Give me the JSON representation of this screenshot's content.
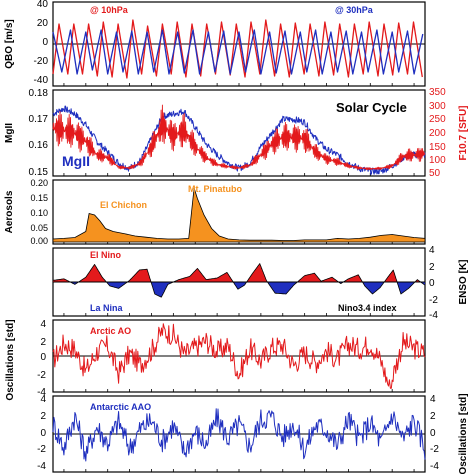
{
  "chart_data": [
    {
      "type": "line",
      "ylabel": "QBO  [m/s]",
      "ylim": [
        -40,
        40
      ],
      "yticks": [
        "40",
        "20",
        "0",
        "-20",
        "-40"
      ],
      "grid": false,
      "series": [
        {
          "name": "@ 10hPa",
          "color": "#e31a1c",
          "x": [
            1979,
            1979.55,
            1980.35,
            1980.9,
            1981.7,
            1982.25,
            1983.05,
            1983.6,
            1984.4,
            1984.95,
            1985.75,
            1986.3,
            1987.1,
            1987.65,
            1988.45,
            1989.0,
            1989.8,
            1990.35,
            1991.15,
            1991.7,
            1992.5,
            1993.05,
            1993.85,
            1994.4,
            1995.2,
            1995.75,
            1996.55,
            1997.1,
            1997.9,
            1998.45,
            1999.25,
            1999.8,
            2000.6,
            2001.15,
            2001.95,
            2002.5,
            2003.3,
            2003.85,
            2004.65,
            2005.2,
            2006.0,
            2006.55,
            2007.35,
            2007.9,
            2008.7,
            2009.25,
            2010.05,
            2010.6,
            2011.4,
            2011.95,
            2012.75
          ],
          "y": [
            -30,
            20,
            -30,
            20,
            -30,
            20,
            -32,
            22,
            -33,
            20,
            -34,
            24,
            -30,
            18,
            -32,
            20,
            -30,
            22,
            -33,
            20,
            -32,
            20,
            -30,
            22,
            -31,
            20,
            -33,
            22,
            -30,
            24,
            -32,
            20,
            -33,
            21,
            -30,
            20,
            -32,
            22,
            -31,
            20,
            -33,
            20,
            -30,
            22,
            -32,
            20,
            -31,
            21,
            -30,
            22,
            -33
          ]
        },
        {
          "name": "@ 30hPa",
          "color": "#1f2fbf",
          "x": [
            1979,
            1979.8,
            1980.6,
            1981.2,
            1982.0,
            1982.6,
            1983.4,
            1984.0,
            1984.8,
            1985.4,
            1986.2,
            1986.8,
            1987.6,
            1988.2,
            1989.0,
            1989.6,
            1990.4,
            1991.0,
            1991.8,
            1992.4,
            1993.2,
            1993.8,
            1994.6,
            1995.2,
            1996.0,
            1996.6,
            1997.4,
            1998.0,
            1998.8,
            1999.4,
            2000.2,
            2000.8,
            2001.6,
            2002.2,
            2003.0,
            2003.6,
            2004.4,
            2005.0,
            2005.8,
            2006.4,
            2007.2,
            2007.8,
            2008.6,
            2009.2,
            2010.0,
            2010.6,
            2011.4,
            2012.0,
            2012.8
          ],
          "y": [
            12,
            -28,
            14,
            -30,
            12,
            -26,
            14,
            -30,
            12,
            -28,
            13,
            -30,
            12,
            -28,
            14,
            -30,
            12,
            -29,
            14,
            -30,
            12,
            -28,
            13,
            -30,
            12,
            -28,
            14,
            -30,
            12,
            -29,
            13,
            -30,
            12,
            -28,
            14,
            -30,
            12,
            -28,
            13,
            -30,
            12,
            -28,
            14,
            -30,
            12,
            -28,
            13,
            -30,
            10
          ]
        }
      ]
    },
    {
      "type": "line",
      "title": "Solar Cycle",
      "ylabel": "MgII",
      "ylabel_right": "F10.7 [SFU]",
      "ylim": [
        0.15,
        0.18
      ],
      "ylim_right": [
        50,
        350
      ],
      "yticks": [
        "0.18",
        "0.17",
        "0.16",
        "0.15"
      ],
      "yticks_right": [
        "350",
        "300",
        "250",
        "200",
        "150",
        "100",
        "50"
      ],
      "grid": false,
      "series": [
        {
          "name": "MgII",
          "color": "#1f2fbf",
          "x": [
            1979,
            1980,
            1981,
            1982,
            1983,
            1984,
            1985,
            1986,
            1987,
            1988,
            1989,
            1990,
            1991,
            1992,
            1993,
            1994,
            1995,
            1996,
            1997,
            1998,
            1999,
            2000,
            2001,
            2002,
            2003,
            2004,
            2005,
            2006,
            2007,
            2008,
            2009,
            2010,
            2011,
            2012,
            2013
          ],
          "y": [
            0.172,
            0.174,
            0.172,
            0.168,
            0.162,
            0.158,
            0.154,
            0.152,
            0.155,
            0.163,
            0.171,
            0.172,
            0.173,
            0.167,
            0.161,
            0.157,
            0.154,
            0.152,
            0.154,
            0.16,
            0.165,
            0.17,
            0.17,
            0.169,
            0.163,
            0.159,
            0.157,
            0.154,
            0.152,
            0.151,
            0.151,
            0.153,
            0.156,
            0.157,
            0.157
          ]
        },
        {
          "name": "F10.7",
          "color": "#e31a1c",
          "x": [
            1979,
            1980,
            1981,
            1982,
            1983,
            1984,
            1985,
            1986,
            1987,
            1988,
            1989,
            1990,
            1991,
            1992,
            1993,
            1994,
            1995,
            1996,
            1997,
            1998,
            1999,
            2000,
            2001,
            2002,
            2003,
            2004,
            2005,
            2006,
            2007,
            2008,
            2009,
            2010,
            2011,
            2012,
            2013
          ],
          "y": [
            220,
            210,
            200,
            170,
            120,
            110,
            75,
            72,
            90,
            150,
            230,
            190,
            210,
            150,
            110,
            85,
            77,
            72,
            82,
            120,
            160,
            185,
            185,
            180,
            130,
            105,
            95,
            80,
            72,
            69,
            71,
            80,
            115,
            120,
            125
          ]
        }
      ]
    },
    {
      "type": "area",
      "ylabel": "Aerosols",
      "ylim": [
        0,
        0.2
      ],
      "yticks": [
        "0.20",
        "0.15",
        "0.10",
        "0.05",
        "0.00"
      ],
      "grid": false,
      "annotations": [
        "El Chichon",
        "Mt. Pinatubo"
      ],
      "series": [
        {
          "name": "Aerosols",
          "color": "#f5921f",
          "x": [
            1979,
            1980,
            1981,
            1982,
            1982.3,
            1982.8,
            1983.3,
            1983.8,
            1984.5,
            1985.5,
            1986.5,
            1987.5,
            1988.5,
            1989.5,
            1990.5,
            1991.4,
            1991.6,
            1991.9,
            1992.2,
            1992.8,
            1993.5,
            1994.2,
            1995,
            1996,
            1997,
            1998,
            1999,
            2000,
            2001,
            2002,
            2003,
            2004,
            2005,
            2006,
            2007,
            2008,
            2009,
            2010,
            2011,
            2012,
            2013
          ],
          "y": [
            0.01,
            0.012,
            0.015,
            0.035,
            0.095,
            0.09,
            0.07,
            0.045,
            0.035,
            0.028,
            0.02,
            0.016,
            0.012,
            0.01,
            0.01,
            0.012,
            0.08,
            0.18,
            0.145,
            0.09,
            0.045,
            0.02,
            0.01,
            0.007,
            0.006,
            0.006,
            0.006,
            0.005,
            0.005,
            0.007,
            0.007,
            0.007,
            0.012,
            0.01,
            0.012,
            0.016,
            0.022,
            0.025,
            0.02,
            0.015,
            0.012
          ]
        }
      ]
    },
    {
      "type": "area",
      "ylabel": "ENSO  [K]",
      "ylim": [
        -4,
        4
      ],
      "yticks": [
        "4",
        "2",
        "0",
        "-2",
        "-4"
      ],
      "grid": false,
      "annotations": [
        "El Nino",
        "La Nina",
        "Nino3.4  index"
      ],
      "series": [
        {
          "name": "Nino3.4",
          "color": "#000000",
          "x": [
            1979,
            1980,
            1981,
            1982,
            1982.8,
            1983.5,
            1984.2,
            1985,
            1986,
            1986.9,
            1987.6,
            1988.3,
            1988.9,
            1989.5,
            1990.5,
            1991.5,
            1992.2,
            1993,
            1994,
            1994.9,
            1995.9,
            1996.5,
            1997.3,
            1997.9,
            1998.5,
            1999.3,
            2000.3,
            2001,
            2002,
            2002.9,
            2003.5,
            2004.5,
            2005.3,
            2006,
            2006.9,
            2007.5,
            2008.2,
            2008.9,
            2009.6,
            2010.1,
            2010.8,
            2011.5,
            2012.3,
            2013
          ],
          "y": [
            0.2,
            0.4,
            -0.3,
            0.6,
            2.2,
            0.6,
            -0.5,
            -0.8,
            0.2,
            1.5,
            1.6,
            -1.5,
            -1.9,
            -0.3,
            0.3,
            0.7,
            1.7,
            0.3,
            0.5,
            1.2,
            -0.9,
            -0.4,
            1.2,
            2.3,
            0.2,
            -1.4,
            -1.5,
            -0.4,
            0.8,
            1.1,
            0.1,
            0.6,
            -0.2,
            0.4,
            0.9,
            -0.5,
            -1.5,
            -0.7,
            0.6,
            1.5,
            -1.5,
            -0.8,
            0.3,
            -0.4
          ]
        }
      ]
    },
    {
      "type": "line",
      "ylabel": "Oscillations [std]",
      "ylim": [
        -4,
        4
      ],
      "yticks": [
        "4",
        "2",
        "0",
        "-2",
        "-4"
      ],
      "grid": false,
      "series": [
        {
          "name": "Arctic  AO",
          "color": "#e31a1c",
          "x": [
            1979,
            1980,
            1981,
            1982,
            1983,
            1984,
            1985,
            1986,
            1987,
            1988,
            1989,
            1990,
            1991,
            1992,
            1993,
            1994,
            1995,
            1996,
            1997,
            1998,
            1999,
            2000,
            2001,
            2002,
            2003,
            2004,
            2005,
            2006,
            2007,
            2008,
            2009,
            2009.9,
            2010,
            2011,
            2012,
            2013
          ],
          "y": [
            -0.5,
            1.5,
            0.8,
            -1.8,
            0.5,
            1.2,
            -2.0,
            0.3,
            -1.0,
            0.6,
            3.0,
            2.5,
            0.2,
            1.0,
            1.8,
            0.5,
            1.2,
            -2.2,
            0.9,
            -0.6,
            1.0,
            1.3,
            -1.1,
            0.4,
            -0.8,
            0.6,
            -0.4,
            1.4,
            0.8,
            1.5,
            -0.7,
            -4.2,
            -2.5,
            1.6,
            0.9,
            0.3
          ]
        }
      ]
    },
    {
      "type": "line",
      "ylabel": "Oscillations [std]",
      "ylim": [
        -4,
        4
      ],
      "yticks": [
        "4",
        "2",
        "0",
        "-2",
        "-4"
      ],
      "grid": false,
      "series": [
        {
          "name": "Antarctic  AAO",
          "color": "#1f2fbf",
          "x": [
            1979,
            1980,
            1981,
            1982,
            1983,
            1984,
            1985,
            1986,
            1987,
            1988,
            1989,
            1990,
            1991,
            1992,
            1993,
            1994,
            1995,
            1996,
            1997,
            1998,
            1999,
            2000,
            2001,
            2002,
            2003,
            2004,
            2005,
            2006,
            2007,
            2008,
            2009,
            2010,
            2011,
            2012,
            2013
          ],
          "y": [
            1.2,
            -1.5,
            2.0,
            -2.2,
            0.8,
            -1.0,
            1.4,
            -1.6,
            0.6,
            1.5,
            -0.8,
            1.0,
            -2.0,
            0.3,
            -1.2,
            1.8,
            -0.5,
            1.1,
            -1.4,
            1.6,
            2.0,
            -0.4,
            1.2,
            -1.8,
            1.0,
            0.5,
            -1.3,
            1.7,
            -0.6,
            1.3,
            -1.0,
            2.2,
            -0.6,
            1.5,
            -1.6
          ]
        }
      ]
    }
  ]
}
